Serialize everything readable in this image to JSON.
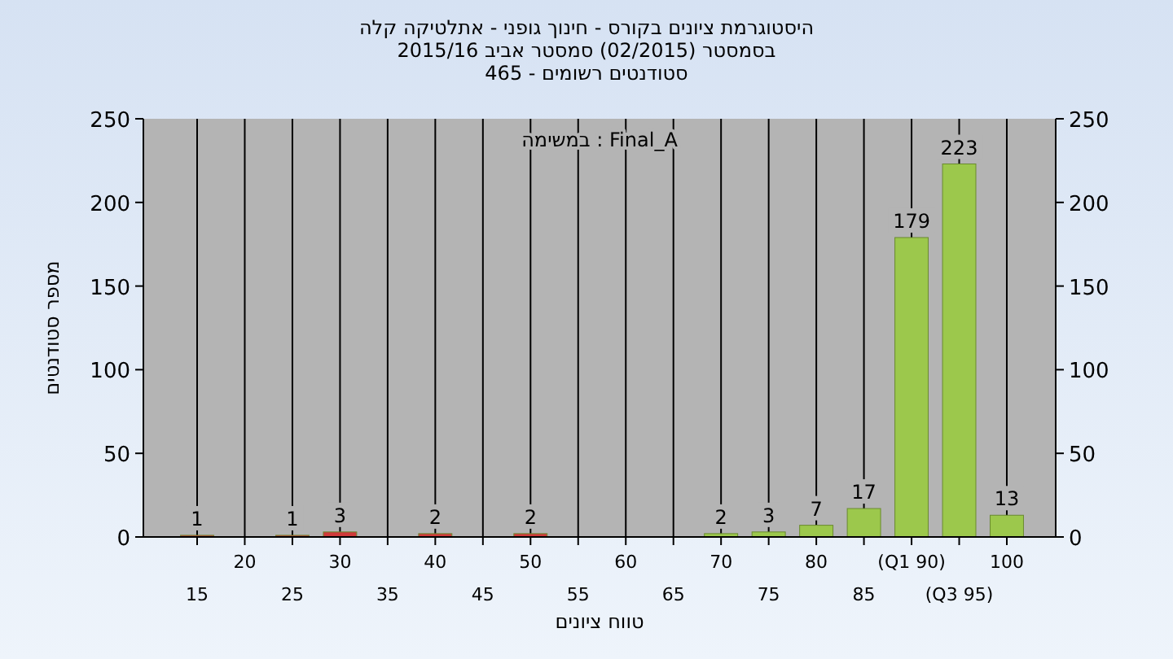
{
  "chart_data": {
    "type": "bar",
    "title": "היסטוגרמת ציונים בקורס - חינוך גופני - אתלטיקה קלה",
    "subtitle": "בסמסטר  (02/2015)  סמסטר אביב 2015/16\nסטודנטים רשומים - 465",
    "xlabel": "טווח ציונים",
    "ylabel": "מספר סטודנטים",
    "annotations": [
      "במשימה : Final_A"
    ],
    "categories": [
      "15",
      "20",
      "25",
      "30",
      "35",
      "40",
      "45",
      "50",
      "55",
      "60",
      "65",
      "70",
      "75",
      "80",
      "85",
      "(Q1 90)",
      "(Q3 95)",
      "100"
    ],
    "values": [
      1,
      0,
      1,
      3,
      0,
      2,
      0,
      2,
      0,
      0,
      0,
      2,
      3,
      7,
      17,
      179,
      223,
      13
    ],
    "value_labels": [
      "1",
      null,
      "1",
      "3",
      null,
      "2",
      null,
      "2",
      null,
      null,
      null,
      "2",
      "3",
      "7",
      "17",
      "179",
      "223",
      "13"
    ],
    "colors": [
      "#d03a3a",
      "#d03a3a",
      "#d03a3a",
      "#d03a3a",
      "#d03a3a",
      "#d03a3a",
      "#d03a3a",
      "#d03a3a",
      "#d03a3a",
      "#d03a3a",
      "#9cc84c",
      "#9cc84c",
      "#9cc84c",
      "#9cc84c",
      "#9cc84c",
      "#9cc84c",
      "#9cc84c",
      "#9cc84c"
    ],
    "ylim": [
      0,
      250
    ],
    "yticks": [
      0,
      50,
      100,
      150,
      200,
      250
    ],
    "y2lim": [
      0,
      250
    ],
    "y2ticks": [
      0,
      50,
      100,
      150,
      200,
      250
    ],
    "grid": "x"
  }
}
